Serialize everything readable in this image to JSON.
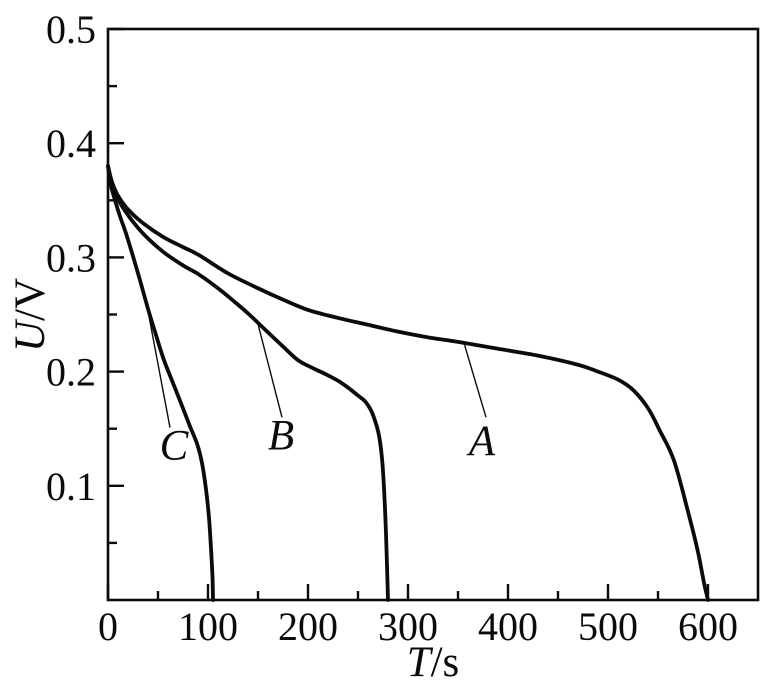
{
  "window": {
    "background": "#ffffff",
    "foreground": "#0b0b0b"
  },
  "chart_data": {
    "type": "line",
    "title": "",
    "xlabel": {
      "variable": "T",
      "unit": "s",
      "display": "T/s"
    },
    "ylabel": {
      "variable": "U",
      "unit": "V",
      "display": "U/V"
    },
    "xlim": [
      0,
      650
    ],
    "ylim": [
      0,
      0.5
    ],
    "grid": false,
    "legend": "none",
    "line_color": "#0b0b0b",
    "x_ticks": {
      "major": [
        0,
        100,
        200,
        300,
        400,
        500,
        600
      ],
      "major_labels": [
        "0",
        "100",
        "200",
        "300",
        "400",
        "500",
        "600"
      ],
      "minor": [
        50,
        150,
        250,
        350,
        450,
        550
      ]
    },
    "y_ticks": {
      "major": [
        0.1,
        0.2,
        0.3,
        0.4,
        0.5
      ],
      "major_labels": [
        "0.1",
        "0.2",
        "0.3",
        "0.4",
        "0.5"
      ],
      "minor": [
        0.05,
        0.15,
        0.25,
        0.35,
        0.45
      ]
    },
    "series": [
      {
        "name": "A",
        "x": [
          0,
          4,
          10,
          20,
          35,
          55,
          75,
          91,
          120,
          150,
          175,
          200,
          230,
          260,
          290,
          320,
          350,
          390,
          430,
          470,
          490,
          510,
          525,
          540,
          552,
          566,
          581,
          590,
          596,
          600
        ],
        "y": [
          0.38,
          0.366,
          0.354,
          0.342,
          0.33,
          0.318,
          0.309,
          0.302,
          0.286,
          0.273,
          0.263,
          0.254,
          0.247,
          0.241,
          0.235,
          0.23,
          0.226,
          0.22,
          0.214,
          0.206,
          0.2,
          0.193,
          0.184,
          0.168,
          0.148,
          0.122,
          0.074,
          0.042,
          0.015,
          0.0
        ]
      },
      {
        "name": "B",
        "x": [
          0,
          4,
          10,
          20,
          35,
          55,
          75,
          91,
          110,
          124,
          140,
          158,
          175,
          190,
          205,
          217,
          230,
          240,
          250,
          257,
          263,
          267,
          271,
          274,
          276,
          278,
          280
        ],
        "y": [
          0.38,
          0.364,
          0.351,
          0.337,
          0.321,
          0.305,
          0.293,
          0.285,
          0.273,
          0.263,
          0.251,
          0.236,
          0.222,
          0.21,
          0.203,
          0.198,
          0.192,
          0.186,
          0.179,
          0.174,
          0.166,
          0.157,
          0.144,
          0.124,
          0.098,
          0.058,
          0.0
        ]
      },
      {
        "name": "C",
        "x": [
          0,
          3,
          7,
          12,
          18,
          25,
          32,
          40,
          48,
          56,
          65,
          74,
          82,
          89,
          94,
          98,
          101,
          103,
          104.5,
          105
        ],
        "y": [
          0.38,
          0.363,
          0.35,
          0.336,
          0.321,
          0.301,
          0.28,
          0.255,
          0.232,
          0.21,
          0.19,
          0.17,
          0.152,
          0.137,
          0.12,
          0.097,
          0.072,
          0.045,
          0.02,
          0.0
        ]
      }
    ],
    "annotations": [
      {
        "text": "A",
        "text_pos": {
          "t": 374,
          "u": 0.14
        },
        "leader_from": {
          "t": 356,
          "u": 0.225
        },
        "leader_to": {
          "t": 378,
          "u": 0.16
        }
      },
      {
        "text": "B",
        "text_pos": {
          "t": 173,
          "u": 0.145
        },
        "leader_from": {
          "t": 149,
          "u": 0.245
        },
        "leader_to": {
          "t": 174,
          "u": 0.16
        }
      },
      {
        "text": "C",
        "text_pos": {
          "t": 66,
          "u": 0.136
        },
        "leader_from": {
          "t": 40,
          "u": 0.253
        },
        "leader_to": {
          "t": 62,
          "u": 0.151
        }
      }
    ]
  }
}
